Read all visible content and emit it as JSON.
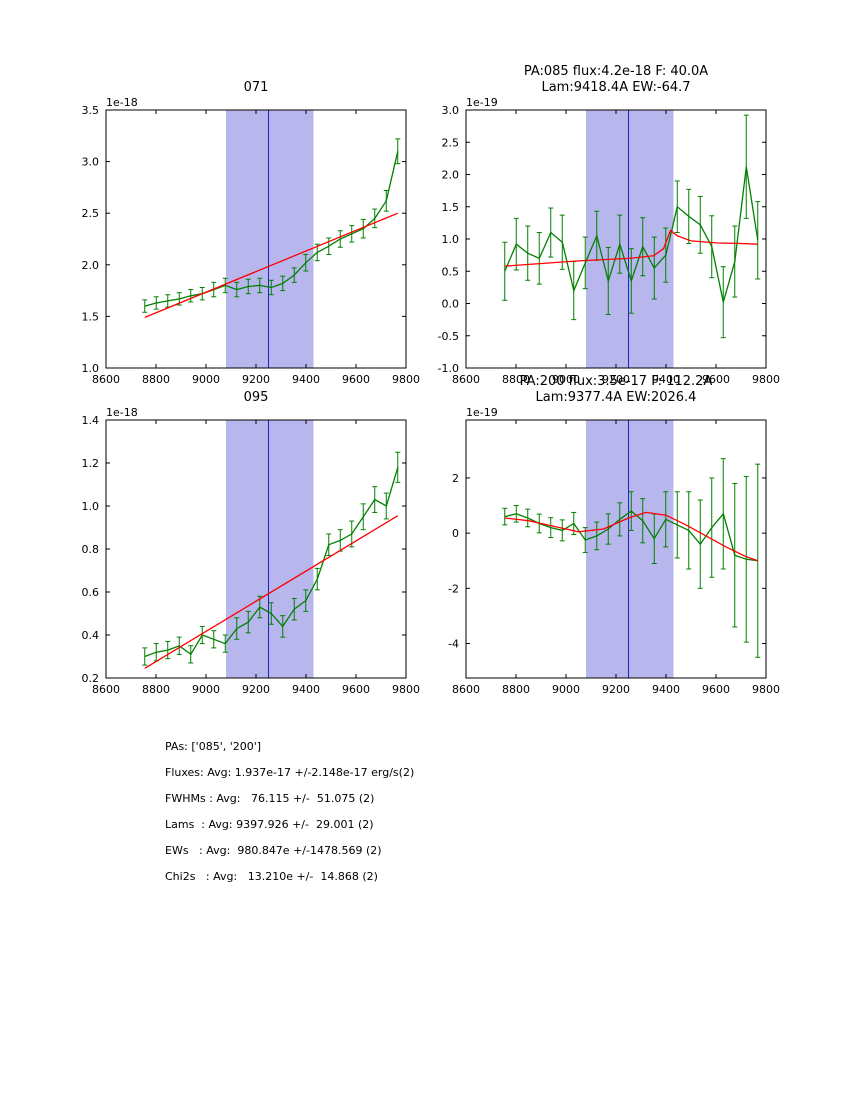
{
  "colors": {
    "data_line": "#008000",
    "fit_line": "#ff0000",
    "band_fill": "#b7b7ee",
    "band_line": "#2222bb",
    "axis": "#000000"
  },
  "summary": {
    "lines": [
      "PAs: ['085', '200']",
      "Fluxes: Avg: 1.937e-17 +/-2.148e-17 erg/s(2)",
      "FWHMs : Avg:   76.115 +/-  51.075 (2)",
      "Lams  : Avg: 9397.926 +/-  29.001 (2)",
      "EWs   : Avg:  980.847e +/-1478.569 (2)",
      "Chi2s   : Avg:   13.210e +/-  14.868 (2)"
    ]
  },
  "chart_data": [
    {
      "type": "line",
      "title": "071",
      "title_lines": [
        "071"
      ],
      "offset_label": "1e-18",
      "xlim": [
        8600,
        9800
      ],
      "ylim": [
        1.0,
        3.5
      ],
      "x_ticks": [
        "8600",
        "8800",
        "9000",
        "9200",
        "9400",
        "9600",
        "9800"
      ],
      "y_ticks": [
        "1.0",
        "1.5",
        "2.0",
        "2.5",
        "3.0",
        "3.5"
      ],
      "band": [
        9080,
        9430
      ],
      "marker_x": 9250,
      "series": [
        {
          "name": "spectrum",
          "color": "#008000",
          "x": [
            8755,
            8801,
            8847,
            8893,
            8939,
            8985,
            9031,
            9077,
            9123,
            9169,
            9215,
            9261,
            9307,
            9353,
            9399,
            9445,
            9491,
            9537,
            9583,
            9629,
            9675,
            9721,
            9767
          ],
          "y": [
            1.6,
            1.63,
            1.65,
            1.67,
            1.7,
            1.72,
            1.76,
            1.8,
            1.76,
            1.79,
            1.8,
            1.78,
            1.82,
            1.9,
            2.02,
            2.12,
            2.18,
            2.25,
            2.3,
            2.35,
            2.45,
            2.62,
            3.1
          ],
          "yerr": [
            0.06,
            0.06,
            0.06,
            0.06,
            0.06,
            0.06,
            0.07,
            0.07,
            0.07,
            0.07,
            0.07,
            0.07,
            0.07,
            0.07,
            0.08,
            0.08,
            0.08,
            0.08,
            0.08,
            0.09,
            0.09,
            0.1,
            0.12
          ]
        },
        {
          "name": "continuum-fit",
          "color": "#ff0000",
          "x": [
            8755,
            9767
          ],
          "y": [
            1.49,
            2.5
          ]
        }
      ]
    },
    {
      "type": "line",
      "title": "PA:085 flux:4.2e-18 F: 40.0A Lam:9418.4A EW:-64.7",
      "title_lines": [
        "PA:085 flux:4.2e-18 F: 40.0A",
        "Lam:9418.4A EW:-64.7"
      ],
      "offset_label": "1e-19",
      "xlim": [
        8600,
        9800
      ],
      "ylim": [
        -1.0,
        3.0
      ],
      "x_ticks": [
        "8600",
        "8800",
        "9000",
        "9200",
        "9400",
        "9600",
        "9800"
      ],
      "y_ticks": [
        "-1.0",
        "-0.5",
        "0.0",
        "0.5",
        "1.0",
        "1.5",
        "2.0",
        "2.5",
        "3.0"
      ],
      "band": [
        9080,
        9430
      ],
      "marker_x": 9250,
      "series": [
        {
          "name": "residual-spectrum",
          "color": "#008000",
          "x": [
            8755,
            8801,
            8847,
            8893,
            8939,
            8985,
            9031,
            9077,
            9123,
            9169,
            9215,
            9261,
            9307,
            9353,
            9399,
            9445,
            9491,
            9537,
            9583,
            9629,
            9675,
            9721,
            9767
          ],
          "y": [
            0.5,
            0.92,
            0.78,
            0.7,
            1.1,
            0.95,
            0.2,
            0.63,
            1.05,
            0.35,
            0.92,
            0.35,
            0.88,
            0.55,
            0.75,
            1.5,
            1.35,
            1.22,
            0.88,
            0.02,
            0.65,
            2.12,
            0.98
          ],
          "yerr": [
            0.45,
            0.4,
            0.42,
            0.4,
            0.38,
            0.42,
            0.45,
            0.4,
            0.38,
            0.52,
            0.45,
            0.5,
            0.45,
            0.48,
            0.42,
            0.4,
            0.42,
            0.44,
            0.48,
            0.55,
            0.55,
            0.8,
            0.6
          ]
        },
        {
          "name": "gaussian-fit",
          "color": "#ff0000",
          "x": [
            8755,
            9050,
            9250,
            9350,
            9390,
            9418,
            9445,
            9500,
            9600,
            9700,
            9767
          ],
          "y": [
            0.58,
            0.66,
            0.7,
            0.74,
            0.85,
            1.13,
            1.05,
            0.97,
            0.94,
            0.93,
            0.92
          ]
        }
      ]
    },
    {
      "type": "line",
      "title": "095",
      "title_lines": [
        "095"
      ],
      "offset_label": "1e-18",
      "xlim": [
        8600,
        9800
      ],
      "ylim": [
        0.2,
        1.4
      ],
      "x_ticks": [
        "8600",
        "8800",
        "9000",
        "9200",
        "9400",
        "9600",
        "9800"
      ],
      "y_ticks": [
        "0.2",
        "0.4",
        "0.6",
        "0.8",
        "1.0",
        "1.2",
        "1.4"
      ],
      "band": [
        9080,
        9430
      ],
      "marker_x": 9250,
      "series": [
        {
          "name": "spectrum",
          "color": "#008000",
          "x": [
            8755,
            8801,
            8847,
            8893,
            8939,
            8985,
            9031,
            9077,
            9123,
            9169,
            9215,
            9261,
            9307,
            9353,
            9399,
            9445,
            9491,
            9537,
            9583,
            9629,
            9675,
            9721,
            9767
          ],
          "y": [
            0.3,
            0.32,
            0.33,
            0.35,
            0.31,
            0.4,
            0.38,
            0.36,
            0.43,
            0.46,
            0.53,
            0.5,
            0.44,
            0.52,
            0.56,
            0.66,
            0.82,
            0.84,
            0.87,
            0.95,
            1.03,
            1.0,
            1.18
          ],
          "yerr": [
            0.04,
            0.04,
            0.04,
            0.04,
            0.04,
            0.04,
            0.04,
            0.04,
            0.05,
            0.05,
            0.05,
            0.05,
            0.05,
            0.05,
            0.05,
            0.05,
            0.05,
            0.05,
            0.06,
            0.06,
            0.06,
            0.06,
            0.07
          ]
        },
        {
          "name": "continuum-fit",
          "color": "#ff0000",
          "x": [
            8755,
            9767
          ],
          "y": [
            0.245,
            0.955
          ]
        }
      ]
    },
    {
      "type": "line",
      "title": "PA:200 flux:3.5e-17 F: 112.2A Lam:9377.4A EW:2026.4",
      "title_lines": [
        "PA:200 flux:3.5e-17 F: 112.2A",
        "Lam:9377.4A EW:2026.4"
      ],
      "offset_label": "1e-19",
      "xlim": [
        8600,
        9800
      ],
      "ylim": [
        -5.25,
        4.1
      ],
      "x_ticks": [
        "8600",
        "8800",
        "9000",
        "9200",
        "9400",
        "9600",
        "9800"
      ],
      "y_ticks": [
        "-4",
        "-2",
        "0",
        "2"
      ],
      "band": [
        9080,
        9430
      ],
      "marker_x": 9250,
      "series": [
        {
          "name": "residual-spectrum",
          "color": "#008000",
          "x": [
            8755,
            8801,
            8847,
            8893,
            8939,
            8985,
            9031,
            9077,
            9123,
            9169,
            9215,
            9261,
            9307,
            9353,
            9399,
            9445,
            9491,
            9537,
            9583,
            9629,
            9675,
            9721,
            9767
          ],
          "y": [
            0.6,
            0.7,
            0.55,
            0.35,
            0.2,
            0.1,
            0.35,
            -0.25,
            -0.1,
            0.15,
            0.5,
            0.8,
            0.45,
            -0.2,
            0.5,
            0.3,
            0.1,
            -0.4,
            0.2,
            0.7,
            -0.8,
            -0.95,
            -1.0
          ],
          "yerr": [
            0.3,
            0.3,
            0.32,
            0.34,
            0.36,
            0.38,
            0.4,
            0.45,
            0.5,
            0.55,
            0.6,
            0.7,
            0.8,
            0.9,
            1.0,
            1.2,
            1.4,
            1.6,
            1.8,
            2.0,
            2.6,
            3.0,
            3.5
          ]
        },
        {
          "name": "gaussian-fit",
          "color": "#ff0000",
          "x": [
            8755,
            8850,
            8950,
            9050,
            9150,
            9250,
            9320,
            9400,
            9480,
            9560,
            9640,
            9720,
            9767
          ],
          "y": [
            0.55,
            0.45,
            0.25,
            0.05,
            0.15,
            0.55,
            0.75,
            0.65,
            0.3,
            -0.1,
            -0.5,
            -0.85,
            -1.0
          ]
        }
      ]
    }
  ]
}
